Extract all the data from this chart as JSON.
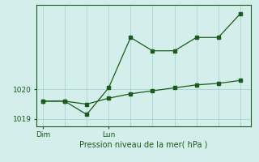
{
  "background_color": "#d4eeeb",
  "grid_color": "#afd8d4",
  "line_color": "#1a5c1a",
  "xlabel": "Pression niveau de la mer( hPa )",
  "ylabel_ticks": [
    1019,
    1020
  ],
  "x_tick_labels": [
    "Dim",
    "Lun"
  ],
  "x_tick_positions": [
    0,
    3
  ],
  "series1_x": [
    0,
    1,
    2,
    3,
    4,
    5,
    6,
    7,
    8,
    9
  ],
  "series1_y": [
    1019.6,
    1019.6,
    1019.15,
    1020.05,
    1021.75,
    1021.3,
    1021.3,
    1021.75,
    1021.75,
    1022.55
  ],
  "series2_x": [
    0,
    1,
    2,
    3,
    4,
    5,
    6,
    7,
    8,
    9
  ],
  "series2_y": [
    1019.6,
    1019.6,
    1019.5,
    1019.7,
    1019.85,
    1019.95,
    1020.05,
    1020.15,
    1020.2,
    1020.3
  ],
  "ylim_min": 1018.75,
  "ylim_max": 1022.85,
  "xlim_min": -0.3,
  "xlim_max": 9.5,
  "figsize": [
    3.2,
    2.0
  ],
  "dpi": 100
}
